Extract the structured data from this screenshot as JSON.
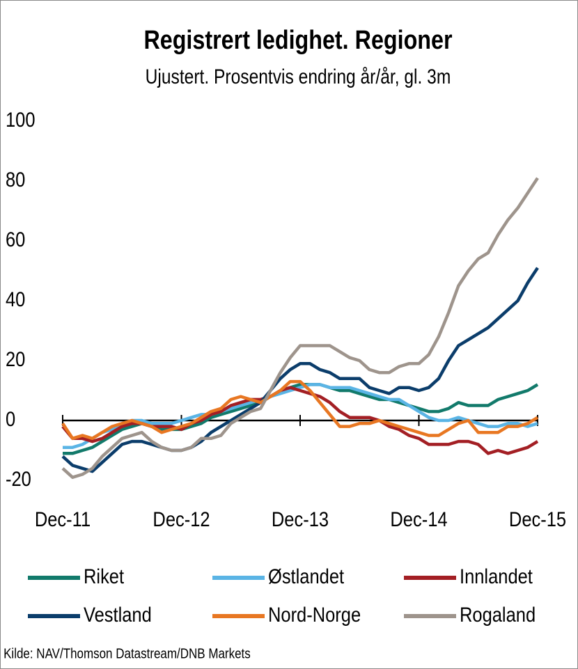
{
  "chart_data": {
    "type": "line",
    "title": "Registrert ledighet. Regioner",
    "subtitle": "Ujustert. Prosentvis endring år/år, gl. 3m",
    "source": "Kilde: NAV/Thomson Datastream/DNB Markets",
    "categories": [
      "Dec-11",
      null,
      null,
      null,
      null,
      null,
      null,
      null,
      null,
      null,
      null,
      null,
      "Dec-12",
      null,
      null,
      null,
      null,
      null,
      null,
      null,
      null,
      null,
      null,
      null,
      "Dec-13",
      null,
      null,
      null,
      null,
      null,
      null,
      null,
      null,
      null,
      null,
      null,
      "Dec-14",
      null,
      null,
      null,
      null,
      null,
      null,
      null,
      null,
      null,
      null,
      null,
      "Dec-15"
    ],
    "ylim": [
      -20,
      100
    ],
    "yticks": [
      -20,
      0,
      20,
      40,
      60,
      80,
      100
    ],
    "series": [
      {
        "name": "Riket",
        "color": "#127a6b",
        "values": [
          -11,
          -11,
          -10,
          -9,
          -7,
          -5,
          -3,
          -2,
          -1,
          -2,
          -3,
          -3,
          -3,
          -2,
          -1,
          1,
          2,
          3,
          4,
          5,
          6,
          8,
          10,
          11,
          12,
          12,
          12,
          11,
          10,
          10,
          9,
          8,
          7,
          7,
          6,
          5,
          4,
          3,
          3,
          4,
          6,
          5,
          5,
          5,
          7,
          8,
          9,
          10,
          12
        ]
      },
      {
        "name": "Østlandet",
        "color": "#5ab4e5",
        "values": [
          -9,
          -9,
          -8,
          -6,
          -4,
          -3,
          -1,
          0,
          0,
          -1,
          -1,
          -1,
          0,
          1,
          2,
          2,
          3,
          4,
          5,
          6,
          7,
          8,
          9,
          10,
          11,
          12,
          12,
          11,
          11,
          11,
          10,
          9,
          8,
          7,
          7,
          5,
          3,
          1,
          0,
          0,
          1,
          0,
          -1,
          -2,
          -2,
          -1,
          -1,
          -2,
          -1
        ]
      },
      {
        "name": "Innlandet",
        "color": "#a31f24",
        "values": [
          -2,
          -6,
          -6,
          -7,
          -6,
          -4,
          -2,
          -1,
          -1,
          -2,
          -2,
          -2,
          -3,
          -1,
          0,
          2,
          3,
          5,
          6,
          7,
          7,
          8,
          10,
          11,
          10,
          9,
          8,
          6,
          3,
          1,
          1,
          1,
          0,
          -2,
          -3,
          -5,
          -6,
          -8,
          -8,
          -8,
          -7,
          -7,
          -8,
          -11,
          -10,
          -11,
          -10,
          -9,
          -7
        ]
      },
      {
        "name": "Vestland",
        "color": "#0b3d6b",
        "values": [
          -12,
          -15,
          -16,
          -17,
          -14,
          -11,
          -8,
          -7,
          -7,
          -8,
          -9,
          -10,
          -10,
          -9,
          -7,
          -4,
          -2,
          0,
          2,
          4,
          6,
          10,
          14,
          17,
          19,
          19,
          17,
          16,
          14,
          14,
          14,
          11,
          10,
          9,
          11,
          11,
          10,
          11,
          14,
          20,
          25,
          27,
          29,
          31,
          34,
          37,
          40,
          46,
          51
        ]
      },
      {
        "name": "Nord-Norge",
        "color": "#e87722",
        "values": [
          -1,
          -6,
          -5,
          -6,
          -4,
          -2,
          -1,
          0,
          -1,
          -2,
          -4,
          -3,
          -2,
          -1,
          1,
          3,
          4,
          7,
          8,
          7,
          6,
          8,
          10,
          13,
          13,
          10,
          6,
          2,
          -2,
          -2,
          -1,
          -1,
          0,
          -1,
          -2,
          -3,
          -4,
          -5,
          -5,
          -3,
          -1,
          0,
          -4,
          -4,
          -4,
          -2,
          -2,
          -1,
          1
        ]
      },
      {
        "name": "Rogaland",
        "color": "#9e948c",
        "values": [
          -16,
          -19,
          -18,
          -16,
          -12,
          -9,
          -6,
          -5,
          -4,
          -7,
          -9,
          -10,
          -10,
          -9,
          -6,
          -6,
          -5,
          -1,
          1,
          3,
          4,
          10,
          16,
          21,
          25,
          25,
          25,
          25,
          23,
          21,
          20,
          17,
          16,
          16,
          18,
          19,
          19,
          22,
          28,
          36,
          45,
          50,
          54,
          56,
          62,
          67,
          71,
          76,
          81
        ]
      }
    ]
  }
}
